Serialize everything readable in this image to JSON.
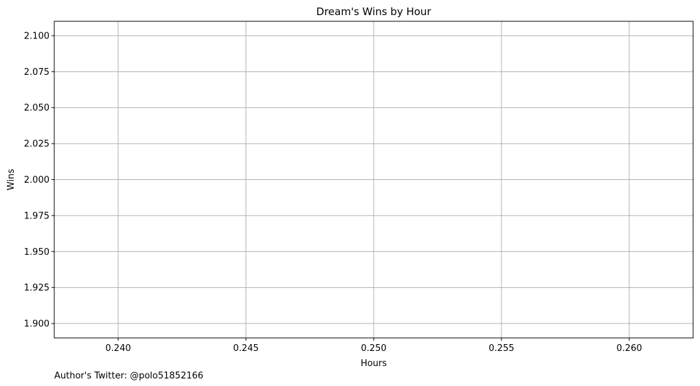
{
  "chart_data": {
    "type": "line",
    "title": "Dream's Wins by Hour",
    "xlabel": "Hours",
    "ylabel": "Wins",
    "xlim": [
      0.2375,
      0.2625
    ],
    "ylim": [
      1.89,
      2.11
    ],
    "x_ticks": [
      0.24,
      0.245,
      0.25,
      0.255,
      0.26
    ],
    "x_tick_labels": [
      "0.240",
      "0.245",
      "0.250",
      "0.255",
      "0.260"
    ],
    "y_ticks": [
      1.9,
      1.925,
      1.95,
      1.975,
      2.0,
      2.025,
      2.05,
      2.075,
      2.1
    ],
    "y_tick_labels": [
      "1.900",
      "1.925",
      "1.950",
      "1.975",
      "2.000",
      "2.025",
      "2.050",
      "2.075",
      "2.100"
    ],
    "grid": true,
    "series": [],
    "annotation": "Author's Twitter: @polo51852166"
  }
}
